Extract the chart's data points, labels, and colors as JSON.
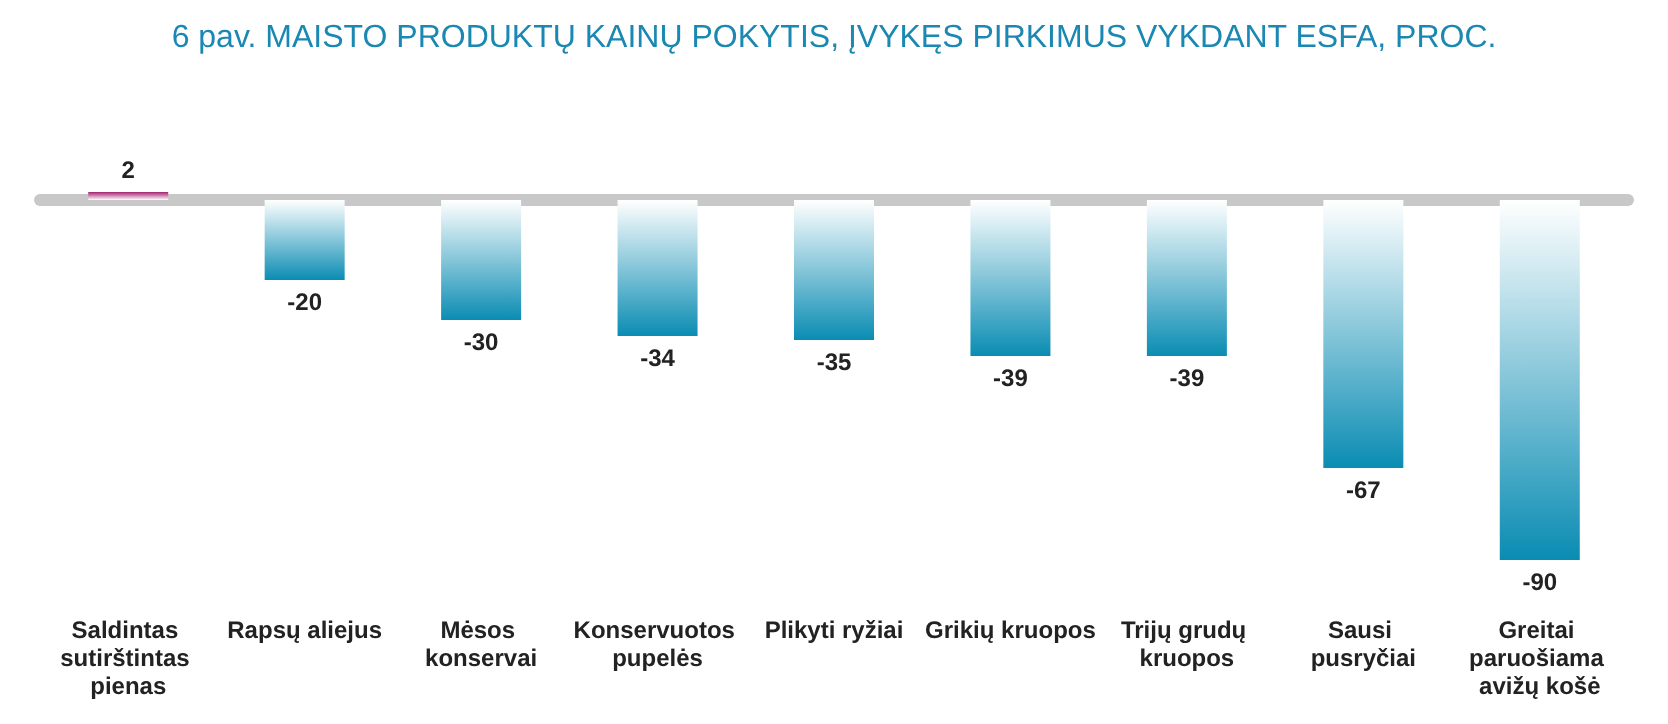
{
  "chart_data": {
    "type": "bar",
    "title": "6 pav. MAISTO PRODUKTŲ KAINŲ POKYTIS, ĮVYKĘS PIRKIMUS VYKDANT ESFA, PROC.",
    "categories": [
      "Saldintas sutirštintas pienas",
      "Rapsų aliejus",
      "Mėsos konservai",
      "Konservuotos pupelės",
      "Plikyti ryžiai",
      "Grikių kruopos",
      "Trijų grudų kruopos",
      "Sausi pusryčiai",
      "Greitai paruošiama avižų košė"
    ],
    "values": [
      2,
      -20,
      -30,
      -34,
      -35,
      -39,
      -39,
      -67,
      -90
    ],
    "colors": [
      "#a3226f",
      "#0a8cb3",
      "#0a8cb3",
      "#0a8cb3",
      "#0a8cb3",
      "#0a8cb3",
      "#0a8cb3",
      "#0a8cb3",
      "#0a8cb3"
    ],
    "data_labels": true
  }
}
